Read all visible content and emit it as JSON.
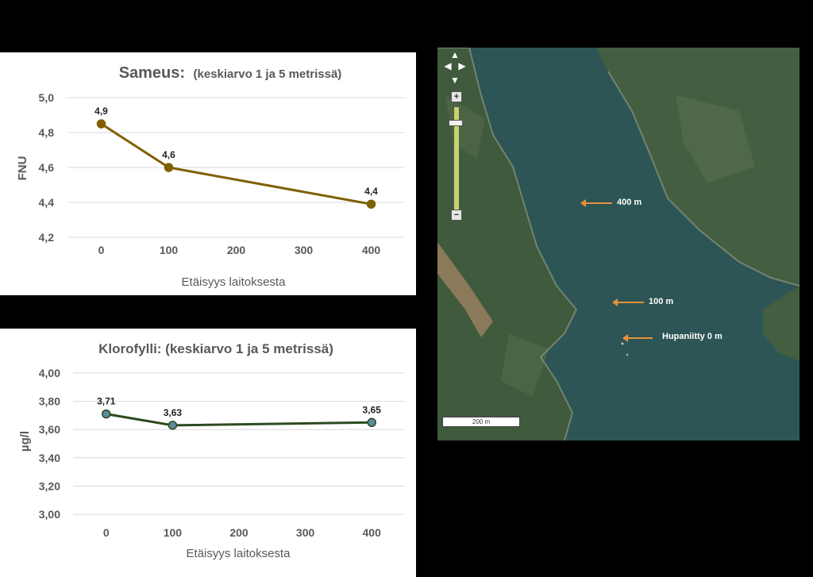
{
  "chart_data": [
    {
      "type": "line",
      "title": "Sameus:",
      "subtitle": "(keskiarvo 1 ja 5 metrissä)",
      "xlabel": "Etäisyys laitoksesta",
      "ylabel": "FNU",
      "x": [
        0,
        100,
        400
      ],
      "values": [
        4.85,
        4.6,
        4.39
      ],
      "data_labels": [
        "4,9",
        "4,6",
        "4,4"
      ],
      "xlim": [
        -50,
        450
      ],
      "ylim": [
        4.2,
        5.0
      ],
      "xticks": [
        "0",
        "100",
        "200",
        "300",
        "400"
      ],
      "yticks": [
        "4,2",
        "4,4",
        "4,6",
        "4,8",
        "5,0"
      ],
      "grid": true,
      "color": "#7f6000"
    },
    {
      "type": "line",
      "title": "Klorofylli: (keskiarvo 1 ja 5 metrissä)",
      "xlabel": "Etäisyys laitoksesta",
      "ylabel": "µg/l",
      "x": [
        0,
        100,
        400
      ],
      "values": [
        3.71,
        3.63,
        3.65
      ],
      "data_labels": [
        "3,71",
        "3,63",
        "3,65"
      ],
      "xlim": [
        -50,
        450
      ],
      "ylim": [
        3.0,
        4.0
      ],
      "xticks": [
        "0",
        "100",
        "200",
        "300",
        "400"
      ],
      "yticks": [
        "3,00",
        "3,20",
        "3,40",
        "3,60",
        "3,80",
        "4,00"
      ],
      "grid": true,
      "color": "#2d4a1e",
      "marker_color": "#5b8a9a"
    }
  ],
  "map": {
    "labels": {
      "m400": "400 m",
      "m100": "100 m",
      "hupaniitty": "Hupaniitty 0 m"
    },
    "scale": "200 m",
    "controls": {
      "up": "▲",
      "left": "◀",
      "right": "▶",
      "down": "▼",
      "zoom_in": "+",
      "zoom_out": "−"
    },
    "arrow_color": "#e8913a",
    "water_color": "#2e5555"
  }
}
